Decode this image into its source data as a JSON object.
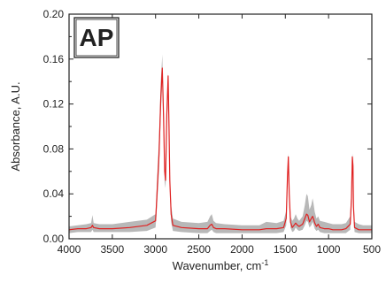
{
  "chart_data": {
    "type": "line",
    "panel_label": "AP",
    "xlabel": "Wavenumber, cm",
    "xlabel_superscript": "-1",
    "ylabel": "Absorbance, A.U.",
    "xlim": [
      4000,
      500
    ],
    "ylim": [
      0.0,
      0.2
    ],
    "x_reversed": true,
    "xticks": [
      "4000",
      "3500",
      "3000",
      "2500",
      "2000",
      "1500",
      "1000",
      "500"
    ],
    "yticks": [
      "0.00",
      "0.04",
      "0.08",
      "0.12",
      "0.16",
      "0.20"
    ],
    "grid": false,
    "legend": "none",
    "colors": {
      "mean_line": "#e02020",
      "spread_band": "#b8b8b8",
      "axis": "#222222"
    },
    "series": [
      {
        "style": "band",
        "x": [
          4000,
          3900,
          3800,
          3745,
          3730,
          3715,
          3650,
          3500,
          3300,
          3100,
          3000,
          2990,
          2960,
          2940,
          2922,
          2908,
          2895,
          2885,
          2870,
          2855,
          2845,
          2835,
          2820,
          2800,
          2700,
          2500,
          2400,
          2370,
          2350,
          2330,
          2300,
          2200,
          2000,
          1800,
          1720,
          1600,
          1520,
          1490,
          1475,
          1465,
          1455,
          1440,
          1420,
          1400,
          1380,
          1360,
          1340,
          1300,
          1275,
          1255,
          1240,
          1220,
          1200,
          1185,
          1175,
          1160,
          1140,
          1120,
          1100,
          1050,
          1000,
          950,
          900,
          850,
          800,
          750,
          735,
          725,
          718,
          712,
          700,
          650,
          600,
          550,
          500
        ],
        "upper": [
          0.011,
          0.012,
          0.013,
          0.014,
          0.021,
          0.014,
          0.013,
          0.013,
          0.015,
          0.017,
          0.022,
          0.04,
          0.09,
          0.14,
          0.164,
          0.12,
          0.07,
          0.06,
          0.12,
          0.148,
          0.11,
          0.06,
          0.03,
          0.018,
          0.015,
          0.014,
          0.015,
          0.02,
          0.022,
          0.016,
          0.014,
          0.013,
          0.012,
          0.012,
          0.015,
          0.014,
          0.016,
          0.025,
          0.062,
          0.076,
          0.045,
          0.02,
          0.016,
          0.018,
          0.022,
          0.018,
          0.016,
          0.02,
          0.03,
          0.04,
          0.038,
          0.026,
          0.03,
          0.036,
          0.032,
          0.024,
          0.018,
          0.02,
          0.016,
          0.015,
          0.014,
          0.013,
          0.013,
          0.013,
          0.014,
          0.02,
          0.045,
          0.076,
          0.07,
          0.035,
          0.015,
          0.013,
          0.012,
          0.012,
          0.012
        ],
        "lower": [
          0.005,
          0.006,
          0.006,
          0.006,
          0.008,
          0.006,
          0.006,
          0.006,
          0.006,
          0.007,
          0.01,
          0.02,
          0.06,
          0.11,
          0.14,
          0.1,
          0.05,
          0.045,
          0.1,
          0.13,
          0.09,
          0.045,
          0.015,
          0.007,
          0.006,
          0.005,
          0.005,
          0.007,
          0.008,
          0.006,
          0.005,
          0.005,
          0.005,
          0.005,
          0.005,
          0.005,
          0.006,
          0.012,
          0.05,
          0.066,
          0.035,
          0.01,
          0.006,
          0.007,
          0.01,
          0.008,
          0.007,
          0.008,
          0.012,
          0.016,
          0.015,
          0.01,
          0.012,
          0.015,
          0.013,
          0.009,
          0.007,
          0.008,
          0.006,
          0.005,
          0.005,
          0.005,
          0.005,
          0.005,
          0.005,
          0.008,
          0.03,
          0.064,
          0.058,
          0.022,
          0.006,
          0.005,
          0.005,
          0.005,
          0.005
        ]
      },
      {
        "style": "line",
        "x": [
          4000,
          3900,
          3800,
          3745,
          3730,
          3715,
          3650,
          3500,
          3300,
          3100,
          3000,
          2990,
          2960,
          2940,
          2922,
          2908,
          2895,
          2885,
          2870,
          2855,
          2845,
          2835,
          2820,
          2800,
          2700,
          2500,
          2400,
          2370,
          2350,
          2330,
          2300,
          2200,
          2000,
          1800,
          1720,
          1600,
          1520,
          1490,
          1475,
          1465,
          1455,
          1440,
          1420,
          1400,
          1380,
          1360,
          1340,
          1300,
          1275,
          1255,
          1240,
          1220,
          1200,
          1185,
          1175,
          1160,
          1140,
          1120,
          1100,
          1050,
          1000,
          950,
          900,
          850,
          800,
          750,
          735,
          725,
          718,
          712,
          700,
          650,
          600,
          550,
          500
        ],
        "y": [
          0.008,
          0.009,
          0.009,
          0.01,
          0.012,
          0.01,
          0.009,
          0.009,
          0.01,
          0.012,
          0.016,
          0.03,
          0.075,
          0.125,
          0.152,
          0.11,
          0.06,
          0.052,
          0.11,
          0.145,
          0.1,
          0.052,
          0.022,
          0.012,
          0.01,
          0.009,
          0.009,
          0.012,
          0.013,
          0.01,
          0.009,
          0.009,
          0.008,
          0.008,
          0.009,
          0.009,
          0.01,
          0.018,
          0.055,
          0.073,
          0.04,
          0.015,
          0.01,
          0.012,
          0.014,
          0.012,
          0.011,
          0.013,
          0.018,
          0.022,
          0.021,
          0.015,
          0.018,
          0.02,
          0.018,
          0.014,
          0.011,
          0.013,
          0.01,
          0.009,
          0.009,
          0.008,
          0.008,
          0.008,
          0.009,
          0.013,
          0.036,
          0.073,
          0.065,
          0.028,
          0.01,
          0.008,
          0.008,
          0.008,
          0.008
        ]
      }
    ]
  }
}
